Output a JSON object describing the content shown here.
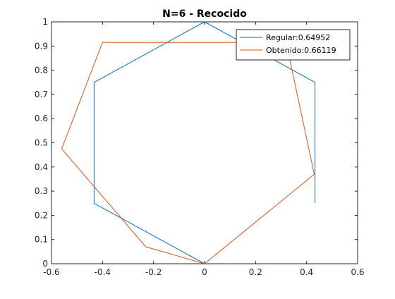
{
  "chart_data": {
    "type": "line",
    "title": "N=6 - Recocido",
    "xlabel": "",
    "ylabel": "",
    "xlim": [
      -0.6,
      0.6
    ],
    "ylim": [
      0,
      1
    ],
    "xticks": [
      -0.6,
      -0.4,
      -0.2,
      0,
      0.2,
      0.4,
      0.6
    ],
    "yticks": [
      0,
      0.1,
      0.2,
      0.3,
      0.4,
      0.5,
      0.6,
      0.7,
      0.8,
      0.9,
      1
    ],
    "xtick_labels": [
      "-0.6",
      "-0.4",
      "-0.2",
      "0",
      "0.2",
      "0.4",
      "0.6"
    ],
    "ytick_labels": [
      "0",
      "0.1",
      "0.2",
      "0.3",
      "0.4",
      "0.5",
      "0.6",
      "0.7",
      "0.8",
      "0.9",
      "1"
    ],
    "grid": false,
    "box": true,
    "legend_position": "top-right",
    "series": [
      {
        "name": "Regular:0.64952",
        "color": "#0072bd",
        "x": [
          0,
          -0.433,
          -0.433,
          0,
          0.433,
          0.433
        ],
        "y": [
          0,
          0.25,
          0.75,
          1,
          0.75,
          0.25
        ]
      },
      {
        "name": "Obtenido:0.66119",
        "color": "#d95319",
        "x": [
          0,
          -0.23,
          -0.56,
          -0.4,
          0.32,
          0.43,
          0
        ],
        "y": [
          0,
          0.07,
          0.475,
          0.915,
          0.915,
          0.37,
          0
        ]
      }
    ]
  }
}
